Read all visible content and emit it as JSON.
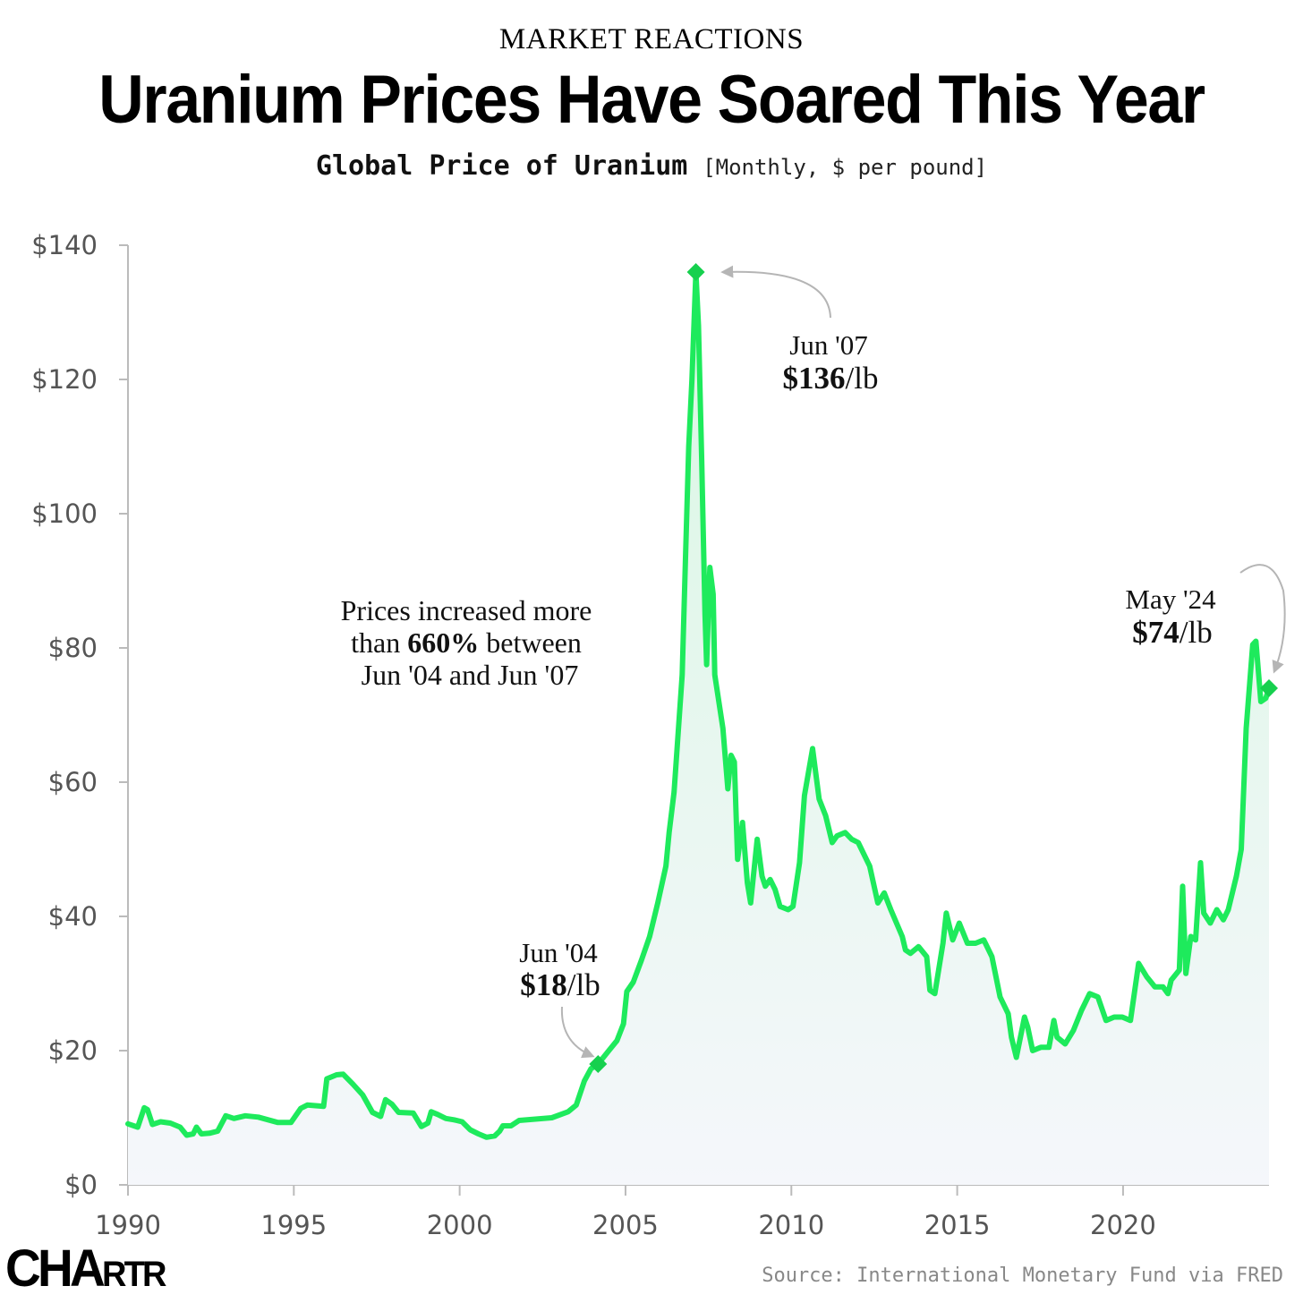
{
  "header": {
    "kicker": "MARKET REACTIONS",
    "title": "Uranium Prices Have Soared This Year",
    "subtitle_main": "Global Price of Uranium",
    "subtitle_units": "[Monthly, $ per pound]"
  },
  "footer": {
    "logo_big": "CHA",
    "logo_small": "RTR",
    "source": "Source: International Monetary Fund via FRED"
  },
  "colors": {
    "line": "#1eea5c",
    "marker": "#16d04e",
    "fill_top": "#d9f7e3",
    "fill_bottom": "#f5f7fb",
    "axis": "#bbbbbb",
    "arrow": "#b5b5b5"
  },
  "chart_data": {
    "type": "area",
    "title": "Global Price of Uranium",
    "ylabel": "",
    "xlabel": "",
    "xlim": [
      1990,
      2024.4
    ],
    "ylim": [
      0,
      140
    ],
    "y_ticks": [
      0,
      20,
      40,
      60,
      80,
      100,
      120,
      140
    ],
    "y_tick_labels": [
      "$0",
      "$20",
      "$40",
      "$60",
      "$80",
      "$100",
      "$120",
      "$140"
    ],
    "x_ticks": [
      1990,
      1995,
      2000,
      2005,
      2010,
      2015,
      2020
    ],
    "x_tick_labels": [
      "1990",
      "1995",
      "2000",
      "2005",
      "2010",
      "2015",
      "2020"
    ],
    "grid": false,
    "series": [
      {
        "points": [
          [
            1990.0,
            9.1
          ],
          [
            1990.3,
            8.6
          ],
          [
            1990.5,
            11.5
          ],
          [
            1990.6,
            11.2
          ],
          [
            1990.75,
            9.0
          ],
          [
            1991.0,
            9.4
          ],
          [
            1991.3,
            9.2
          ],
          [
            1991.6,
            8.6
          ],
          [
            1991.8,
            7.4
          ],
          [
            1992.0,
            7.6
          ],
          [
            1992.1,
            8.6
          ],
          [
            1992.25,
            7.6
          ],
          [
            1992.5,
            7.7
          ],
          [
            1992.75,
            8.0
          ],
          [
            1993.0,
            10.3
          ],
          [
            1993.25,
            9.9
          ],
          [
            1993.6,
            10.3
          ],
          [
            1994.0,
            10.1
          ],
          [
            1994.3,
            9.7
          ],
          [
            1994.6,
            9.3
          ],
          [
            1995.0,
            9.3
          ],
          [
            1995.3,
            11.4
          ],
          [
            1995.5,
            11.9
          ],
          [
            1995.75,
            11.8
          ],
          [
            1996.0,
            11.7
          ],
          [
            1996.1,
            15.8
          ],
          [
            1996.4,
            16.4
          ],
          [
            1996.6,
            16.5
          ],
          [
            1996.9,
            15.0
          ],
          [
            1997.2,
            13.4
          ],
          [
            1997.5,
            10.8
          ],
          [
            1997.75,
            10.2
          ],
          [
            1997.9,
            12.7
          ],
          [
            1998.1,
            12.0
          ],
          [
            1998.3,
            10.8
          ],
          [
            1998.75,
            10.7
          ],
          [
            1999.0,
            8.7
          ],
          [
            1999.2,
            9.2
          ],
          [
            1999.3,
            10.9
          ],
          [
            1999.5,
            10.5
          ],
          [
            1999.75,
            9.9
          ],
          [
            2000.0,
            9.7
          ],
          [
            2000.25,
            9.4
          ],
          [
            2000.5,
            8.2
          ],
          [
            2000.75,
            7.6
          ],
          [
            2001.0,
            7.1
          ],
          [
            2001.25,
            7.3
          ],
          [
            2001.4,
            8.0
          ],
          [
            2001.5,
            8.8
          ],
          [
            2001.75,
            8.8
          ],
          [
            2002.0,
            9.6
          ],
          [
            2002.5,
            9.8
          ],
          [
            2003.0,
            10.0
          ],
          [
            2003.5,
            10.9
          ],
          [
            2003.75,
            11.9
          ],
          [
            2004.0,
            15.5
          ],
          [
            2004.2,
            17.3
          ],
          [
            2004.42,
            18.0
          ],
          [
            2004.75,
            20.0
          ],
          [
            2005.0,
            21.5
          ],
          [
            2005.2,
            24.0
          ],
          [
            2005.3,
            28.8
          ],
          [
            2005.5,
            30.2
          ],
          [
            2005.75,
            33.5
          ],
          [
            2006.0,
            37.0
          ],
          [
            2006.25,
            42.0
          ],
          [
            2006.5,
            47.5
          ],
          [
            2006.6,
            52.5
          ],
          [
            2006.75,
            58.5
          ],
          [
            2007.0,
            76.0
          ],
          [
            2007.1,
            93.0
          ],
          [
            2007.2,
            110.0
          ],
          [
            2007.3,
            120.0
          ],
          [
            2007.42,
            136.0
          ],
          [
            2007.5,
            128.0
          ],
          [
            2007.6,
            108.0
          ],
          [
            2007.7,
            85.0
          ],
          [
            2007.75,
            77.5
          ],
          [
            2007.85,
            92.0
          ],
          [
            2007.95,
            88.0
          ],
          [
            2008.0,
            76.0
          ],
          [
            2008.25,
            68.0
          ],
          [
            2008.4,
            59.0
          ],
          [
            2008.5,
            64.0
          ],
          [
            2008.6,
            63.0
          ],
          [
            2008.7,
            48.5
          ],
          [
            2008.85,
            54.0
          ],
          [
            2009.0,
            45.0
          ],
          [
            2009.1,
            42.0
          ],
          [
            2009.3,
            51.5
          ],
          [
            2009.45,
            46.0
          ],
          [
            2009.55,
            44.5
          ],
          [
            2009.7,
            45.5
          ],
          [
            2009.85,
            44.0
          ],
          [
            2010.0,
            41.5
          ],
          [
            2010.25,
            41.0
          ],
          [
            2010.4,
            41.5
          ],
          [
            2010.6,
            48.0
          ],
          [
            2010.75,
            58.0
          ],
          [
            2011.0,
            65.0
          ],
          [
            2011.2,
            57.5
          ],
          [
            2011.4,
            55.0
          ],
          [
            2011.6,
            51.0
          ],
          [
            2011.75,
            52.0
          ],
          [
            2012.0,
            52.5
          ],
          [
            2012.2,
            51.5
          ],
          [
            2012.4,
            51.0
          ],
          [
            2012.75,
            47.5
          ],
          [
            2013.0,
            42.0
          ],
          [
            2013.2,
            43.5
          ],
          [
            2013.4,
            41.0
          ],
          [
            2013.75,
            37.0
          ],
          [
            2013.85,
            35.0
          ],
          [
            2014.0,
            34.5
          ],
          [
            2014.25,
            35.5
          ],
          [
            2014.5,
            34.0
          ],
          [
            2014.6,
            29.0
          ],
          [
            2014.75,
            28.5
          ],
          [
            2015.0,
            36.0
          ],
          [
            2015.1,
            40.5
          ],
          [
            2015.3,
            36.5
          ],
          [
            2015.5,
            39.0
          ],
          [
            2015.75,
            36.0
          ],
          [
            2016.0,
            36.0
          ],
          [
            2016.25,
            36.5
          ],
          [
            2016.5,
            34.0
          ],
          [
            2016.75,
            28.0
          ],
          [
            2017.0,
            25.5
          ],
          [
            2017.1,
            22.0
          ],
          [
            2017.25,
            19.0
          ],
          [
            2017.5,
            25.0
          ],
          [
            2017.6,
            23.5
          ],
          [
            2017.75,
            20.0
          ],
          [
            2018.0,
            20.5
          ],
          [
            2018.25,
            20.5
          ],
          [
            2018.4,
            24.5
          ],
          [
            2018.5,
            22.0
          ],
          [
            2018.75,
            21.0
          ],
          [
            2019.0,
            23.0
          ],
          [
            2019.25,
            26.0
          ],
          [
            2019.5,
            28.5
          ],
          [
            2019.75,
            28.0
          ],
          [
            2020.0,
            24.5
          ],
          [
            2020.25,
            25.0
          ],
          [
            2020.5,
            25.0
          ],
          [
            2020.75,
            24.5
          ],
          [
            2021.0,
            33.0
          ],
          [
            2021.25,
            31.0
          ],
          [
            2021.5,
            29.5
          ],
          [
            2021.75,
            29.5
          ],
          [
            2021.9,
            28.5
          ],
          [
            2022.0,
            30.5
          ],
          [
            2022.25,
            32.0
          ],
          [
            2022.35,
            44.5
          ],
          [
            2022.45,
            31.5
          ],
          [
            2022.6,
            37.0
          ],
          [
            2022.75,
            36.5
          ],
          [
            2022.9,
            48.0
          ],
          [
            2023.0,
            40.5
          ],
          [
            2023.2,
            39.0
          ],
          [
            2023.4,
            41.0
          ],
          [
            2023.6,
            39.5
          ],
          [
            2023.75,
            41.0
          ],
          [
            2024.0,
            46.0
          ],
          [
            2024.15,
            50.0
          ],
          [
            2024.3,
            68.0
          ],
          [
            2024.5,
            80.5
          ],
          [
            2024.6,
            81.0
          ],
          [
            2024.75,
            72.0
          ],
          [
            2024.9,
            72.5
          ],
          [
            2025.0,
            74.0
          ]
        ]
      }
    ],
    "highlights": [
      {
        "x": 2004.42,
        "y": 18
      },
      {
        "x": 2007.42,
        "y": 136
      },
      {
        "x": 2025.0,
        "y": 74
      }
    ],
    "annotations": [
      {
        "id": "jun04",
        "line1": "Jun '04",
        "bold": "$18",
        "rest": "/lb"
      },
      {
        "id": "jun07",
        "line1": "Jun '07",
        "bold": "$136",
        "rest": "/lb"
      },
      {
        "id": "may24",
        "line1": "May '24",
        "bold": "$74",
        "rest": "/lb"
      },
      {
        "id": "pct",
        "line1": "Prices increased more",
        "pre2": "than ",
        "bold2": "660%",
        "post2": " between",
        "line3": "Jun '04 and Jun '07"
      }
    ]
  }
}
